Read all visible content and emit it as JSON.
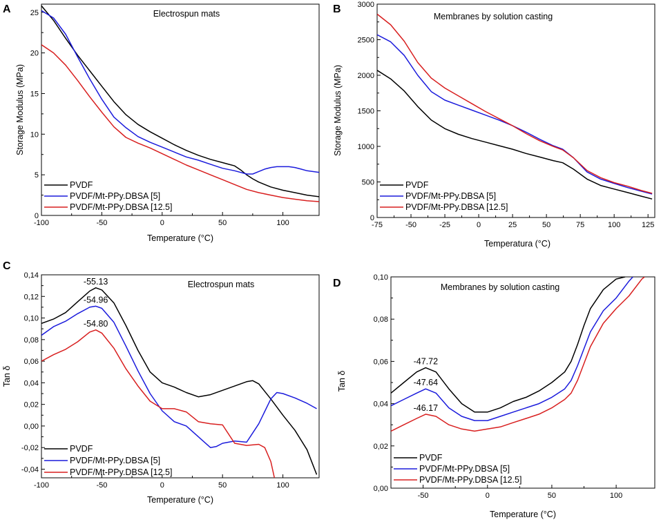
{
  "colors": {
    "PVDF": "#000000",
    "MT5": "#1a1adc",
    "MT125": "#d81e1e"
  },
  "chart_data": [
    {
      "type": "line",
      "panel": "A",
      "title": "Electrospun mats",
      "xlabel": "Temperature (°C)",
      "ylabel": "Storage Modulus (MPa)",
      "xlim": [
        -100,
        130
      ],
      "ylim": [
        0,
        26
      ],
      "xticks": [
        -100,
        -50,
        0,
        50,
        100
      ],
      "xtick_labels": [
        "-100",
        "-50",
        "0",
        "50",
        "100"
      ],
      "yticks": [
        0,
        5,
        10,
        15,
        20,
        25
      ],
      "ytick_labels": [
        "0",
        "5",
        "10",
        "15",
        "20",
        "25"
      ],
      "legend_position": "bottom-left",
      "series": [
        {
          "name": "PVDF",
          "color_key": "PVDF",
          "x": [
            -100,
            -90,
            -80,
            -70,
            -60,
            -50,
            -40,
            -30,
            -20,
            -10,
            0,
            10,
            20,
            30,
            40,
            50,
            55,
            60,
            65,
            70,
            75,
            80,
            90,
            100,
            110,
            120,
            130
          ],
          "y": [
            25.8,
            24.0,
            21.8,
            19.7,
            17.8,
            15.9,
            14.0,
            12.4,
            11.2,
            10.3,
            9.5,
            8.7,
            8.0,
            7.4,
            6.9,
            6.5,
            6.3,
            6.1,
            5.6,
            5.0,
            4.5,
            4.1,
            3.5,
            3.1,
            2.8,
            2.5,
            2.3
          ]
        },
        {
          "name": "PVDF/Mt-PPy.DBSA [5]",
          "color_key": "MT5",
          "x": [
            -100,
            -90,
            -80,
            -70,
            -60,
            -50,
            -40,
            -30,
            -20,
            -10,
            0,
            10,
            20,
            30,
            40,
            50,
            60,
            70,
            75,
            80,
            85,
            90,
            95,
            100,
            105,
            110,
            115,
            120,
            130
          ],
          "y": [
            25.2,
            24.3,
            22.3,
            19.5,
            16.8,
            14.3,
            12.1,
            10.8,
            9.7,
            9.0,
            8.4,
            7.8,
            7.2,
            6.8,
            6.3,
            5.8,
            5.5,
            5.1,
            5.1,
            5.4,
            5.7,
            5.9,
            6.0,
            6.0,
            6.0,
            5.9,
            5.7,
            5.5,
            5.3
          ]
        },
        {
          "name": "PVDF/Mt-PPy.DBSA [12.5]",
          "color_key": "MT125",
          "x": [
            -100,
            -90,
            -80,
            -70,
            -60,
            -50,
            -40,
            -30,
            -20,
            -10,
            0,
            10,
            20,
            30,
            40,
            50,
            60,
            70,
            80,
            90,
            100,
            110,
            120,
            130
          ],
          "y": [
            21.0,
            20.0,
            18.5,
            16.6,
            14.6,
            12.7,
            10.9,
            9.6,
            8.9,
            8.3,
            7.6,
            6.9,
            6.2,
            5.6,
            5.0,
            4.4,
            3.8,
            3.2,
            2.8,
            2.5,
            2.2,
            2.0,
            1.8,
            1.7
          ]
        }
      ]
    },
    {
      "type": "line",
      "panel": "B",
      "title": "Membranes by solution casting",
      "xlabel": "Temperatura (°C)",
      "ylabel": "Storage Modulus (MPa)",
      "xlim": [
        -75,
        130
      ],
      "ylim": [
        0,
        3000
      ],
      "xticks": [
        -75,
        -50,
        -25,
        0,
        25,
        50,
        75,
        100,
        125
      ],
      "xtick_labels": [
        "-75",
        "-50",
        "-25",
        "0",
        "25",
        "50",
        "75",
        "100",
        "125"
      ],
      "yticks": [
        0,
        500,
        1000,
        1500,
        2000,
        2500,
        3000
      ],
      "ytick_labels": [
        "0",
        "500",
        "1000",
        "1500",
        "2000",
        "2500",
        "3000"
      ],
      "legend_position": "bottom-left",
      "series": [
        {
          "name": "PVDF",
          "color_key": "PVDF",
          "x": [
            -75,
            -65,
            -55,
            -45,
            -35,
            -25,
            -15,
            -5,
            5,
            15,
            25,
            35,
            45,
            55,
            62,
            70,
            80,
            90,
            100,
            110,
            120,
            128
          ],
          "y": [
            2070,
            1950,
            1780,
            1560,
            1370,
            1250,
            1170,
            1110,
            1060,
            1010,
            960,
            900,
            850,
            800,
            770,
            680,
            540,
            450,
            400,
            350,
            300,
            260
          ]
        },
        {
          "name": "PVDF/Mt-PPy.DBSA [5]",
          "color_key": "MT5",
          "x": [
            -75,
            -65,
            -55,
            -45,
            -35,
            -25,
            -15,
            -5,
            5,
            15,
            25,
            35,
            45,
            55,
            62,
            70,
            80,
            90,
            100,
            110,
            120,
            128
          ],
          "y": [
            2570,
            2470,
            2280,
            2000,
            1770,
            1650,
            1580,
            1510,
            1440,
            1370,
            1290,
            1200,
            1100,
            1010,
            960,
            840,
            640,
            540,
            480,
            420,
            370,
            330
          ]
        },
        {
          "name": "PVDF/Mt-PPy.DBSA [12.5]",
          "color_key": "MT125",
          "x": [
            -75,
            -65,
            -55,
            -45,
            -35,
            -25,
            -15,
            -5,
            5,
            15,
            25,
            35,
            45,
            55,
            62,
            70,
            80,
            90,
            100,
            110,
            120,
            128
          ],
          "y": [
            2860,
            2710,
            2480,
            2180,
            1960,
            1820,
            1710,
            1600,
            1490,
            1390,
            1290,
            1180,
            1080,
            1000,
            950,
            840,
            660,
            560,
            490,
            440,
            380,
            340
          ]
        }
      ]
    },
    {
      "type": "line",
      "panel": "C",
      "title": "Electrospun mats",
      "xlabel": "Temperature (°C)",
      "ylabel": "Tan δ",
      "xlim": [
        -100,
        130
      ],
      "ylim": [
        -0.048,
        0.14
      ],
      "xticks": [
        -100,
        -50,
        0,
        50,
        100
      ],
      "xtick_labels": [
        "-100",
        "-50",
        "0",
        "50",
        "100"
      ],
      "yticks": [
        -0.04,
        -0.02,
        0.0,
        0.02,
        0.04,
        0.06,
        0.08,
        0.1,
        0.12,
        0.14
      ],
      "ytick_labels": [
        "-0,04",
        "-0,02",
        "0,00",
        "0,02",
        "0,04",
        "0,06",
        "0,08",
        "0,10",
        "0,12",
        "0,14"
      ],
      "legend_position": "bottom-left",
      "annotations": [
        {
          "text": "-55.13",
          "x": -55,
          "y": 0.128,
          "color_key": "PVDF"
        },
        {
          "text": "-54.96",
          "x": -55,
          "y": 0.111,
          "color_key": "MT5"
        },
        {
          "text": "-54.80",
          "x": -55,
          "y": 0.089,
          "color_key": "MT125"
        }
      ],
      "series": [
        {
          "name": "PVDF",
          "color_key": "PVDF",
          "x": [
            -100,
            -90,
            -80,
            -70,
            -60,
            -55,
            -50,
            -40,
            -30,
            -20,
            -10,
            0,
            10,
            20,
            30,
            40,
            50,
            60,
            70,
            75,
            80,
            90,
            100,
            110,
            120,
            128
          ],
          "y": [
            0.095,
            0.099,
            0.105,
            0.115,
            0.125,
            0.128,
            0.126,
            0.114,
            0.093,
            0.07,
            0.05,
            0.04,
            0.036,
            0.031,
            0.027,
            0.029,
            0.033,
            0.037,
            0.041,
            0.042,
            0.039,
            0.025,
            0.01,
            -0.004,
            -0.022,
            -0.045
          ]
        },
        {
          "name": "PVDF/Mt-PPy.DBSA [5]",
          "color_key": "MT5",
          "x": [
            -100,
            -90,
            -80,
            -70,
            -60,
            -55,
            -50,
            -40,
            -30,
            -20,
            -10,
            0,
            10,
            20,
            30,
            40,
            45,
            50,
            60,
            70,
            80,
            90,
            95,
            100,
            110,
            120,
            128
          ],
          "y": [
            0.084,
            0.092,
            0.097,
            0.104,
            0.11,
            0.111,
            0.109,
            0.096,
            0.074,
            0.051,
            0.03,
            0.014,
            0.004,
            0.0,
            -0.01,
            -0.02,
            -0.019,
            -0.016,
            -0.014,
            -0.015,
            0.002,
            0.025,
            0.031,
            0.03,
            0.026,
            0.021,
            0.016
          ]
        },
        {
          "name": "PVDF/Mt-PPy.DBSA [12.5]",
          "color_key": "MT125",
          "x": [
            -100,
            -90,
            -80,
            -70,
            -60,
            -55,
            -50,
            -40,
            -30,
            -20,
            -10,
            0,
            10,
            20,
            30,
            40,
            50,
            60,
            70,
            80,
            85,
            90,
            93
          ],
          "y": [
            0.06,
            0.066,
            0.071,
            0.078,
            0.087,
            0.089,
            0.086,
            0.072,
            0.053,
            0.037,
            0.023,
            0.016,
            0.016,
            0.013,
            0.004,
            0.002,
            0.001,
            -0.016,
            -0.018,
            -0.017,
            -0.02,
            -0.033,
            -0.048
          ]
        }
      ]
    },
    {
      "type": "line",
      "panel": "D",
      "title": "Membranes by solution casting",
      "xlabel": "Temperature (°C)",
      "ylabel": "Tan δ",
      "xlim": [
        -75,
        130
      ],
      "ylim": [
        0,
        0.1
      ],
      "xticks": [
        -50,
        0,
        50,
        100
      ],
      "xtick_labels": [
        "-50",
        "0",
        "50",
        "100"
      ],
      "yticks": [
        0,
        0.02,
        0.04,
        0.06,
        0.08,
        0.1
      ],
      "ytick_labels": [
        "0,00",
        "0,02",
        "0,04",
        "0,06",
        "0,08",
        "0,10"
      ],
      "legend_position": "bottom-left",
      "annotations": [
        {
          "text": "-47.72",
          "x": -48,
          "y": 0.057,
          "color_key": "PVDF"
        },
        {
          "text": "-47.64",
          "x": -48,
          "y": 0.047,
          "color_key": "MT5"
        },
        {
          "text": "-46.17",
          "x": -48,
          "y": 0.035,
          "color_key": "MT125"
        }
      ],
      "series": [
        {
          "name": "PVDF",
          "color_key": "PVDF",
          "x": [
            -75,
            -65,
            -55,
            -48,
            -40,
            -30,
            -20,
            -10,
            0,
            10,
            20,
            30,
            40,
            50,
            60,
            65,
            70,
            75,
            80,
            90,
            100,
            107
          ],
          "y": [
            0.045,
            0.05,
            0.055,
            0.057,
            0.055,
            0.047,
            0.04,
            0.036,
            0.036,
            0.038,
            0.041,
            0.043,
            0.046,
            0.05,
            0.055,
            0.06,
            0.068,
            0.077,
            0.085,
            0.094,
            0.099,
            0.1
          ]
        },
        {
          "name": "PVDF/Mt-PPy.DBSA [5]",
          "color_key": "MT5",
          "x": [
            -75,
            -65,
            -55,
            -48,
            -40,
            -30,
            -20,
            -10,
            0,
            10,
            20,
            30,
            40,
            50,
            60,
            65,
            70,
            75,
            80,
            90,
            100,
            110,
            113
          ],
          "y": [
            0.039,
            0.042,
            0.045,
            0.047,
            0.045,
            0.038,
            0.034,
            0.032,
            0.032,
            0.034,
            0.036,
            0.038,
            0.04,
            0.043,
            0.047,
            0.051,
            0.058,
            0.066,
            0.074,
            0.084,
            0.09,
            0.098,
            0.1
          ]
        },
        {
          "name": "PVDF/Mt-PPy.DBSA [12.5]",
          "color_key": "MT125",
          "x": [
            -75,
            -65,
            -55,
            -48,
            -40,
            -30,
            -20,
            -10,
            0,
            10,
            20,
            30,
            40,
            50,
            60,
            65,
            70,
            75,
            80,
            90,
            100,
            110,
            120,
            122
          ],
          "y": [
            0.027,
            0.03,
            0.033,
            0.035,
            0.034,
            0.03,
            0.028,
            0.027,
            0.028,
            0.029,
            0.031,
            0.033,
            0.035,
            0.038,
            0.042,
            0.045,
            0.051,
            0.059,
            0.067,
            0.078,
            0.085,
            0.091,
            0.099,
            0.1
          ]
        }
      ]
    }
  ]
}
